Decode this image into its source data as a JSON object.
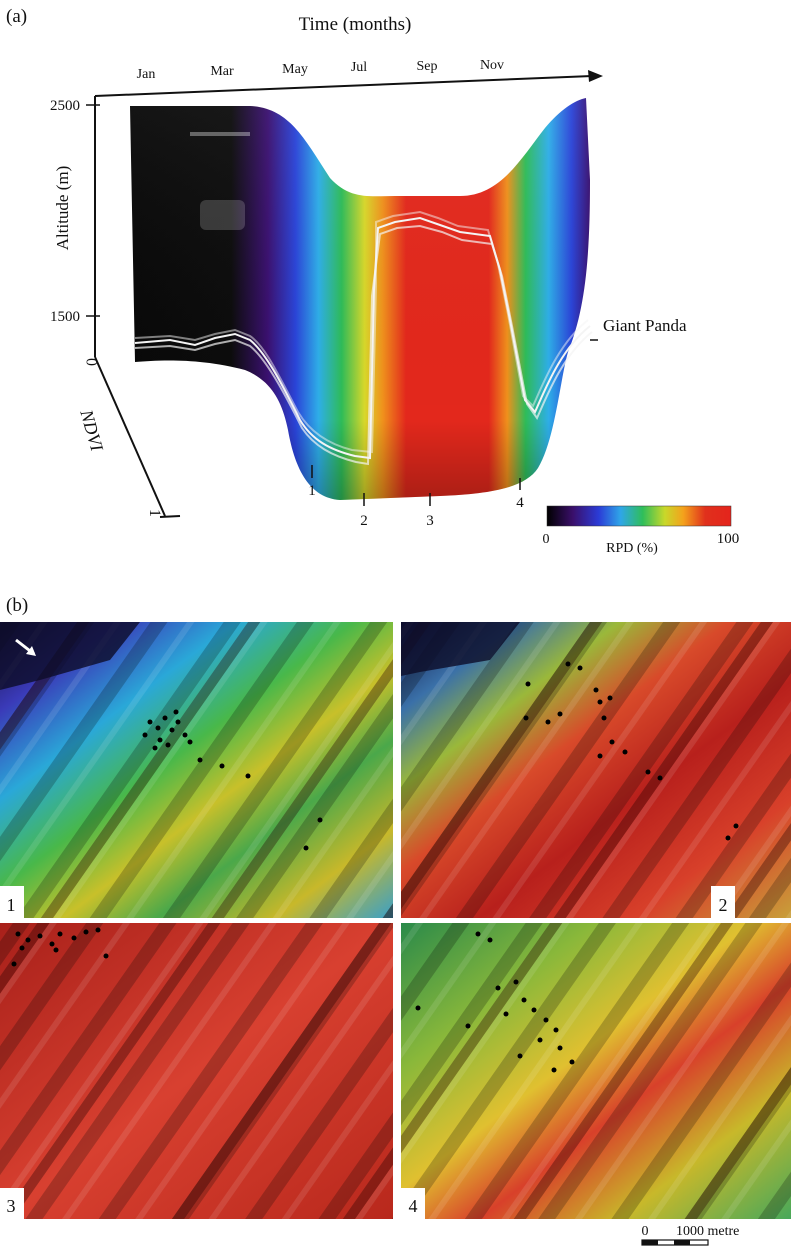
{
  "panel_a": {
    "label": "(a)",
    "time_axis_title": "Time (months)",
    "months": [
      "Jan",
      "Mar",
      "May",
      "Jul",
      "Sep",
      "Nov"
    ],
    "altitude_axis_title": "Altitude (m)",
    "altitude_ticks": [
      "2500",
      "1500"
    ],
    "origin_label": "0",
    "ndvi_axis_title": "NDVI",
    "ndvi_tick": "1",
    "series_label": "Giant Panda",
    "markers": [
      "1",
      "2",
      "3",
      "4"
    ],
    "colorbar": {
      "min_label": "0",
      "max_label": "100",
      "title": "RPD (%)",
      "colors": [
        "#000000",
        "#3a0f6a",
        "#2b3bd6",
        "#2fa6e8",
        "#2fbe5a",
        "#c8d82a",
        "#f4a21c",
        "#e0301c",
        "#e4241c"
      ]
    }
  },
  "panel_b": {
    "label": "(b)",
    "maps": [
      {
        "label": "1"
      },
      {
        "label": "2"
      },
      {
        "label": "3"
      },
      {
        "label": "4"
      }
    ],
    "scale_zero": "0",
    "scale_label": "1000 metre"
  }
}
